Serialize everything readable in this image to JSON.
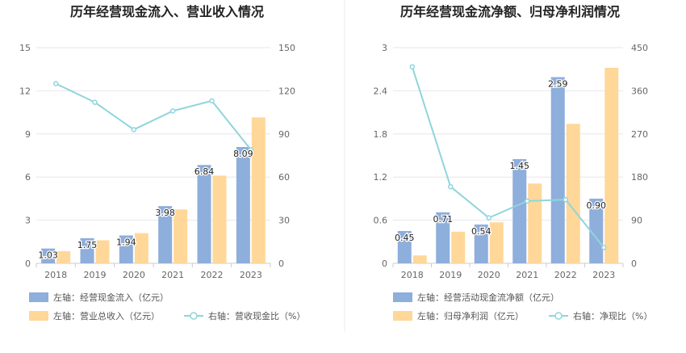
{
  "chart_data": [
    {
      "type": "bar",
      "title": "历年经营现金流入、营业收入情况",
      "categories": [
        "2018",
        "2019",
        "2020",
        "2021",
        "2022",
        "2023"
      ],
      "left_axis": {
        "min": 0,
        "max": 15,
        "ticks": [
          "0",
          "3",
          "6",
          "9",
          "12",
          "15"
        ]
      },
      "right_axis": {
        "min": 0,
        "max": 150,
        "ticks": [
          "0",
          "30",
          "60",
          "90",
          "120",
          "150"
        ]
      },
      "series": [
        {
          "name": "左轴：经营现金流入（亿元）",
          "type": "bar",
          "axis": "left",
          "color": "#8eaedc",
          "values": [
            1.03,
            1.75,
            1.94,
            3.98,
            6.84,
            8.09
          ],
          "labels": [
            "1.03",
            "1.75",
            "1.94",
            "3.98",
            "6.84",
            "8.09"
          ]
        },
        {
          "name": "左轴：营业总收入（亿元）",
          "type": "bar",
          "axis": "left",
          "color": "#ffd799",
          "values": [
            0.85,
            1.6,
            2.1,
            3.75,
            6.1,
            10.15
          ]
        },
        {
          "name": "右轴：营收现金比（%）",
          "type": "line",
          "axis": "right",
          "color": "#8fd5dd",
          "values": [
            125,
            112,
            93,
            106,
            113,
            79
          ]
        }
      ],
      "grid": true
    },
    {
      "type": "bar",
      "title": "历年经营现金流净额、归母净利润情况",
      "categories": [
        "2018",
        "2019",
        "2020",
        "2021",
        "2022",
        "2023"
      ],
      "left_axis": {
        "min": 0,
        "max": 3,
        "ticks": [
          "0",
          "0.6",
          "1.2",
          "1.8",
          "2.4",
          "3"
        ]
      },
      "right_axis": {
        "min": 0,
        "max": 450,
        "ticks": [
          "0",
          "90",
          "180",
          "270",
          "360",
          "450"
        ]
      },
      "series": [
        {
          "name": "左轴：经营活动现金流净额（亿元）",
          "type": "bar",
          "axis": "left",
          "color": "#8eaedc",
          "values": [
            0.45,
            0.71,
            0.54,
            1.45,
            2.59,
            0.9
          ],
          "labels": [
            "0.45",
            "0.71",
            "0.54",
            "1.45",
            "2.59",
            "0.90"
          ]
        },
        {
          "name": "左轴：归母净利润（亿元）",
          "type": "bar",
          "axis": "left",
          "color": "#ffd799",
          "values": [
            0.11,
            0.44,
            0.57,
            1.11,
            1.94,
            2.72
          ]
        },
        {
          "name": "右轴：净现比（%）",
          "type": "line",
          "axis": "right",
          "color": "#8fd5dd",
          "values": [
            410,
            160,
            95,
            130,
            133,
            33
          ]
        }
      ],
      "grid": true
    }
  ]
}
